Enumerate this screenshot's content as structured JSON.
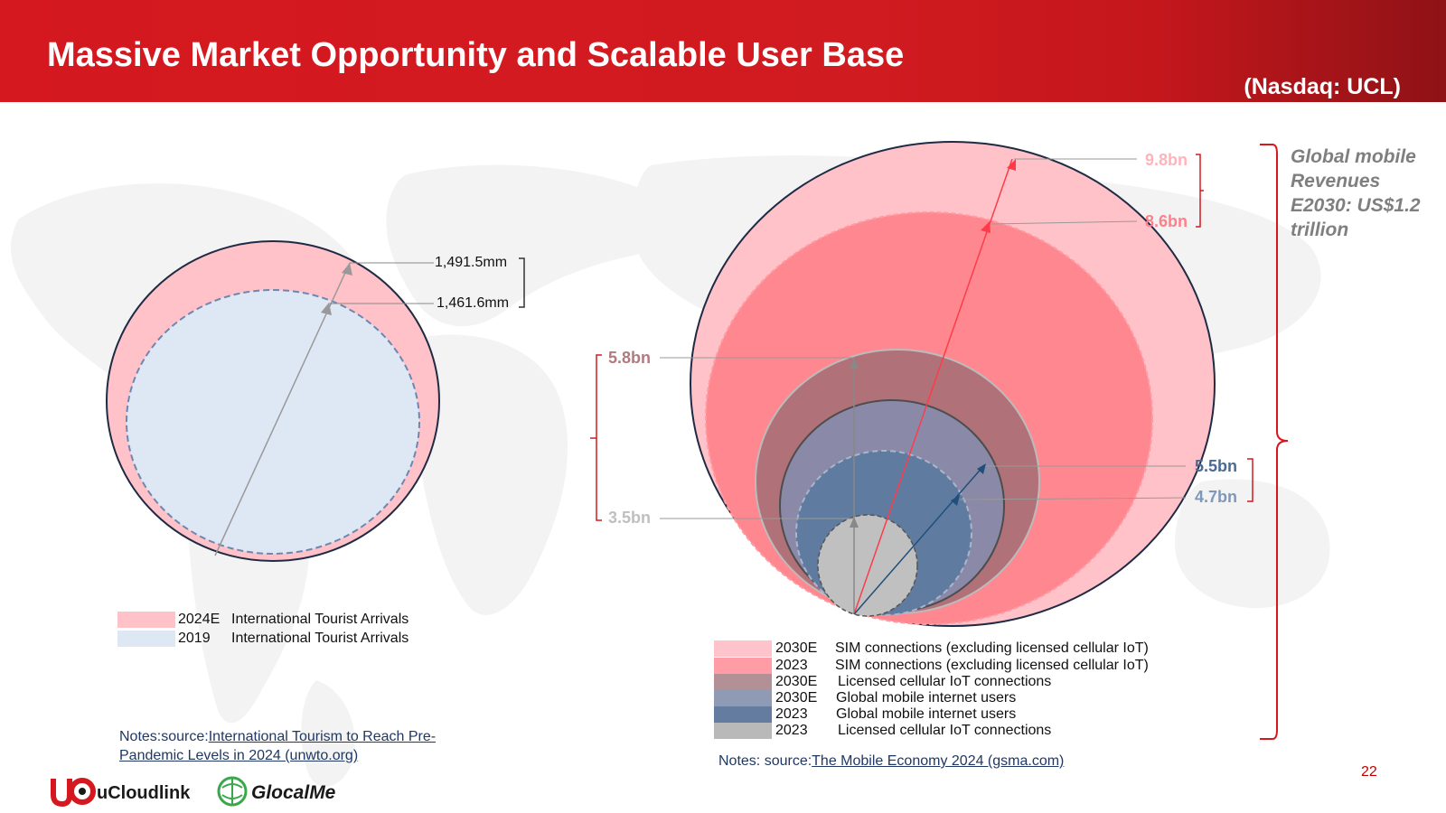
{
  "header": {
    "title": "Massive Market Opportunity and Scalable User Base",
    "ticker": "(Nasdaq: UCL)"
  },
  "left_chart": {
    "outer_label": "1,491.5mm",
    "inner_label": "1,461.6mm",
    "legend": [
      {
        "year": "2024E",
        "text": "International Tourist Arrivals",
        "color": "#ffc2c8"
      },
      {
        "year": "2019",
        "text": "International Tourist Arrivals",
        "color": "#dee8f4"
      }
    ],
    "notes_prefix": "Notes:source:",
    "notes_link_line1": "International Tourism to Reach Pre-",
    "notes_link_line2": "Pandemic Levels in 2024 (unwto.org)"
  },
  "right_chart": {
    "labels": {
      "sim_2030e": "9.8bn",
      "sim_2023": "8.6bn",
      "iot_2030e": "5.8bn",
      "iot_2023": "3.5bn",
      "users_2030e": "5.5bn",
      "users_2023": "4.7bn"
    },
    "label_colors": {
      "sim_2030e": "#ffb3bb",
      "sim_2023": "#ff7f8a",
      "iot_2030e": "#b07a80",
      "iot_2023": "#bfbfbf",
      "users_2030e": "#4a6b93",
      "users_2023": "#7f97b8"
    },
    "legend": [
      {
        "year": "2030E",
        "text": "SIM connections (excluding licensed cellular IoT)",
        "color": "#ffc4cb"
      },
      {
        "year": "2023",
        "text": "SIM connections  (excluding licensed cellular IoT)",
        "color": "#ff9ca6"
      },
      {
        "year": "2030E",
        "text": "Licensed cellular IoT connections",
        "color": "#b39096"
      },
      {
        "year": "2030E",
        "text": "Global mobile internet users",
        "color": "#8f9bb5"
      },
      {
        "year": "2023",
        "text": "Global mobile internet users",
        "color": "#647c9f"
      },
      {
        "year": "2023",
        "text": "Licensed cellular IoT connections",
        "color": "#b9b9b9"
      }
    ],
    "revenue_text": "Global mobile Revenues E2030: US$1.2 trillion",
    "notes_prefix": "Notes: source:",
    "notes_link": "The Mobile Economy 2024 (gsma.com)"
  },
  "footer": {
    "page_number": "22",
    "logo_ucloudlink": "uCloudlink",
    "logo_glocalme": "GlocalMe"
  }
}
